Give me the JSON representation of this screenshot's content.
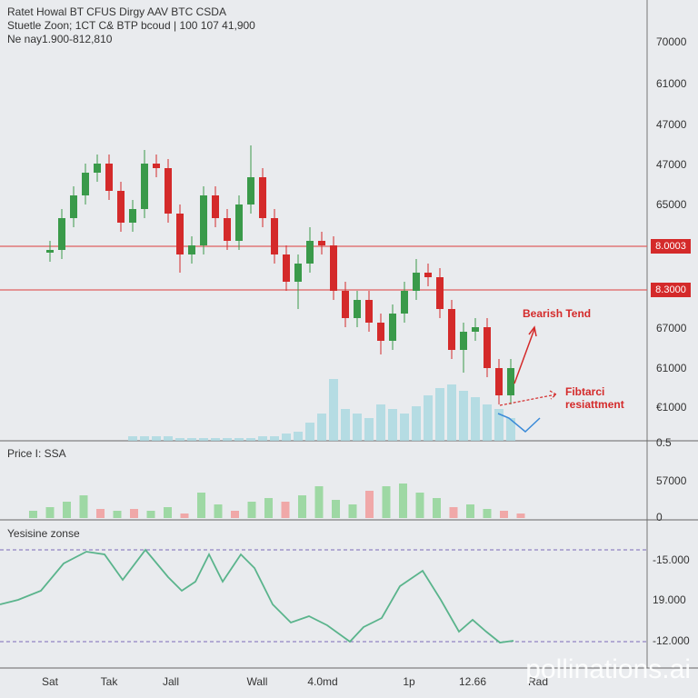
{
  "chart_data": [
    {
      "type": "candlestick",
      "title": "Ratet Howal BT CFUS Dirgy AAV BTC CSDA",
      "subtitle": "Stuetle Zoon; 1CT C& BTP bcoud | 100 107 41,900",
      "note": "Ne nay1.900-812,810",
      "ylim": [
        0,
        460
      ],
      "open": [
        202,
        205,
        240,
        265,
        290,
        300,
        270,
        235,
        250,
        300,
        295,
        245,
        200,
        210,
        265,
        240,
        215,
        255,
        285,
        240,
        200,
        170,
        190,
        215,
        210,
        160,
        130,
        150,
        125,
        105,
        135,
        160,
        180,
        175,
        140,
        95,
        115,
        120,
        75,
        45
      ],
      "high": [
        215,
        250,
        275,
        300,
        310,
        310,
        280,
        260,
        315,
        310,
        305,
        255,
        220,
        275,
        275,
        250,
        265,
        320,
        295,
        250,
        210,
        200,
        230,
        225,
        220,
        170,
        160,
        160,
        135,
        145,
        170,
        195,
        190,
        185,
        150,
        125,
        130,
        130,
        85,
        85
      ],
      "low": [
        192,
        195,
        230,
        255,
        280,
        260,
        225,
        225,
        240,
        285,
        235,
        180,
        190,
        200,
        230,
        205,
        205,
        245,
        230,
        190,
        160,
        140,
        180,
        200,
        150,
        120,
        120,
        115,
        90,
        95,
        125,
        150,
        165,
        130,
        85,
        70,
        105,
        65,
        35,
        35
      ],
      "close": [
        205,
        240,
        265,
        290,
        300,
        270,
        235,
        250,
        300,
        295,
        245,
        200,
        210,
        265,
        240,
        215,
        255,
        285,
        240,
        200,
        170,
        190,
        215,
        210,
        160,
        130,
        150,
        125,
        105,
        135,
        160,
        180,
        175,
        140,
        95,
        115,
        120,
        75,
        45,
        75
      ],
      "up_color": "#3a9a4a",
      "down_color": "#d42a2a",
      "hlines": [
        {
          "value": 209,
          "label": "8.0003"
        },
        {
          "value": 161,
          "label": "8.3000"
        }
      ],
      "hline_color": "#e06060",
      "right_labels": [
        "70000",
        "61000",
        "47000",
        "47000",
        "65000",
        "67000",
        "61000",
        "€1000"
      ],
      "annotations": [
        {
          "text": "Bearish Tend"
        },
        {
          "text": [
            "Fibtarci",
            "resiattment"
          ]
        }
      ],
      "volume": [
        0,
        0,
        0,
        0,
        0,
        0,
        0,
        5,
        5,
        5,
        5,
        3,
        3,
        3,
        3,
        3,
        3,
        3,
        5,
        5,
        8,
        10,
        20,
        30,
        68,
        35,
        30,
        25,
        40,
        35,
        30,
        38,
        50,
        58,
        62,
        55,
        48,
        40,
        35,
        25
      ],
      "volume_color": "#a8d8e0"
    },
    {
      "type": "bar",
      "title": "Price I: SSA",
      "ylim": [
        0,
        60
      ],
      "values": [
        8,
        12,
        18,
        25,
        10,
        8,
        10,
        8,
        12,
        5,
        28,
        15,
        8,
        18,
        22,
        18,
        25,
        35,
        20,
        15,
        30,
        35,
        38,
        28,
        22,
        12,
        15,
        10,
        8,
        5
      ],
      "bar_colors": [
        "#9ed8a4",
        "#9ed8a4",
        "#9ed8a4",
        "#9ed8a4",
        "#f0a8a8",
        "#9ed8a4",
        "#f0a8a8",
        "#9ed8a4",
        "#9ed8a4",
        "#f0a8a8",
        "#9ed8a4",
        "#9ed8a4",
        "#f0a8a8",
        "#9ed8a4",
        "#9ed8a4",
        "#f0a8a8",
        "#9ed8a4",
        "#9ed8a4",
        "#9ed8a4",
        "#9ed8a4",
        "#f0a8a8",
        "#9ed8a4",
        "#9ed8a4",
        "#9ed8a4",
        "#9ed8a4",
        "#f0a8a8",
        "#9ed8a4",
        "#9ed8a4",
        "#f0a8a8",
        "#f0a8a8"
      ],
      "right_labels": [
        "0.5",
        "57000",
        "0"
      ]
    },
    {
      "type": "line",
      "title": "Yesisine zonse",
      "xlim": [
        0,
        740
      ],
      "ylim": [
        0,
        140
      ],
      "x": [
        0,
        20,
        45,
        70,
        95,
        115,
        135,
        160,
        185,
        200,
        215,
        230,
        245,
        265,
        280,
        300,
        320,
        340,
        360,
        385,
        400,
        420,
        440,
        465,
        485,
        505,
        520,
        535,
        550,
        565
      ],
      "values": [
        55,
        60,
        70,
        100,
        113,
        110,
        82,
        115,
        85,
        70,
        80,
        110,
        80,
        110,
        95,
        55,
        35,
        42,
        32,
        14,
        30,
        40,
        75,
        92,
        60,
        25,
        38,
        25,
        13,
        15
      ],
      "color": "#5ab48c",
      "levels": [
        115,
        14
      ],
      "level_color": "#7a6ab8",
      "right_labels": [
        "-15.000",
        "19.000",
        "-12.000"
      ]
    }
  ],
  "x_axis_labels": [
    "Sat",
    "Tak",
    "Jall",
    "Wall",
    "4.0md",
    "1p",
    "12.66",
    "Rad"
  ],
  "watermark": "pollinations.ai"
}
